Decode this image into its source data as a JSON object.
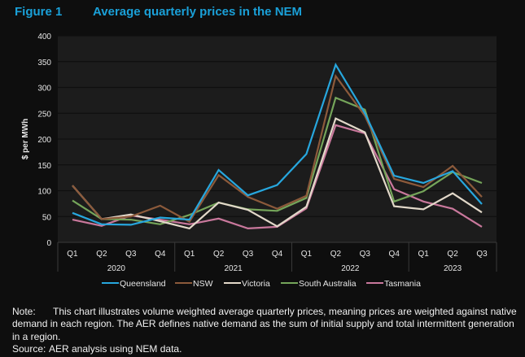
{
  "figure": {
    "number": "Figure 1",
    "title": "Average quarterly prices in the NEM"
  },
  "chart_data": {
    "type": "line",
    "title": "Average quarterly prices in the NEM",
    "xlabel": "",
    "ylabel": "$ per MWh",
    "ylim": [
      0,
      400
    ],
    "yticks": [
      0,
      50,
      100,
      150,
      200,
      250,
      300,
      350,
      400
    ],
    "grid": true,
    "legend_position": "bottom",
    "categories": [
      "Q1",
      "Q2",
      "Q3",
      "Q4",
      "Q1",
      "Q2",
      "Q3",
      "Q4",
      "Q1",
      "Q2",
      "Q3",
      "Q4",
      "Q1",
      "Q2",
      "Q3"
    ],
    "groups": [
      {
        "label": "2020",
        "count": 4
      },
      {
        "label": "2021",
        "count": 4
      },
      {
        "label": "2022",
        "count": 4
      },
      {
        "label": "2023",
        "count": 3
      }
    ],
    "series": [
      {
        "name": "Queensland",
        "color": "#27a7de",
        "values": [
          57,
          35,
          34,
          48,
          44,
          140,
          91,
          111,
          171,
          344,
          250,
          129,
          115,
          138,
          74
        ]
      },
      {
        "name": "NSW",
        "color": "#8c5a3b",
        "values": [
          110,
          45,
          50,
          71,
          40,
          130,
          88,
          65,
          90,
          322,
          245,
          123,
          107,
          148,
          88
        ]
      },
      {
        "name": "Victoria",
        "color": "#e2d8c9",
        "values": [
          110,
          45,
          54,
          41,
          27,
          77,
          63,
          31,
          69,
          240,
          213,
          70,
          64,
          95,
          58
        ]
      },
      {
        "name": "South Australia",
        "color": "#75a55a",
        "values": [
          81,
          45,
          44,
          35,
          53,
          77,
          64,
          61,
          86,
          280,
          257,
          79,
          99,
          136,
          115
        ]
      },
      {
        "name": "Tasmania",
        "color": "#c9789c",
        "values": [
          44,
          32,
          52,
          44,
          35,
          46,
          27,
          30,
          66,
          227,
          211,
          103,
          79,
          65,
          30
        ]
      }
    ]
  },
  "notes": {
    "note_label": "Note:",
    "note_text": "This chart illustrates volume weighted average quarterly prices, meaning prices are weighted against native demand in each region. The AER defines native demand as the sum of initial supply and total intermittent generation in a region.",
    "source_label": "Source:",
    "source_text": "AER analysis using NEM data."
  }
}
